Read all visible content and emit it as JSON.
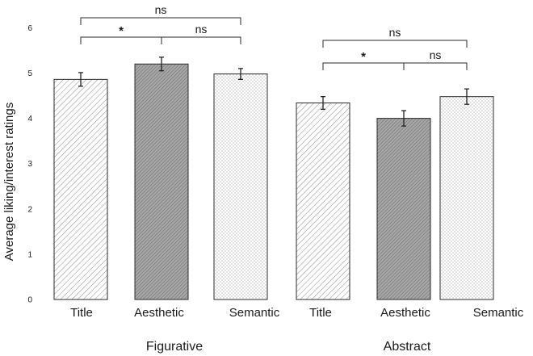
{
  "chart_data": {
    "type": "bar",
    "ylabel": "Average liking/interest ratings",
    "ylim": [
      0,
      6
    ],
    "yticks": [
      0,
      1,
      2,
      3,
      4,
      5,
      6
    ],
    "grid": false,
    "groups": [
      {
        "label": "Figurative",
        "bars": [
          {
            "category": "Title",
            "value": 4.86,
            "error": 0.15,
            "pattern": "diagonal"
          },
          {
            "category": "Aesthetic",
            "value": 5.2,
            "error": 0.15,
            "pattern": "dense"
          },
          {
            "category": "Semantic",
            "value": 4.98,
            "error": 0.12,
            "pattern": "dotted"
          }
        ],
        "comparisons": [
          {
            "from": 0,
            "to": 1,
            "label": "*"
          },
          {
            "from": 1,
            "to": 2,
            "label": "ns"
          },
          {
            "from": 0,
            "to": 2,
            "label": "ns"
          }
        ]
      },
      {
        "label": "Abstract",
        "bars": [
          {
            "category": "Title",
            "value": 4.34,
            "error": 0.14,
            "pattern": "diagonal"
          },
          {
            "category": "Aesthetic",
            "value": 4.0,
            "error": 0.17,
            "pattern": "dense"
          },
          {
            "category": "Semantic",
            "value": 4.48,
            "error": 0.17,
            "pattern": "dotted"
          }
        ],
        "comparisons": [
          {
            "from": 0,
            "to": 1,
            "label": "*"
          },
          {
            "from": 1,
            "to": 2,
            "label": "ns"
          },
          {
            "from": 0,
            "to": 2,
            "label": "ns"
          }
        ]
      }
    ]
  }
}
